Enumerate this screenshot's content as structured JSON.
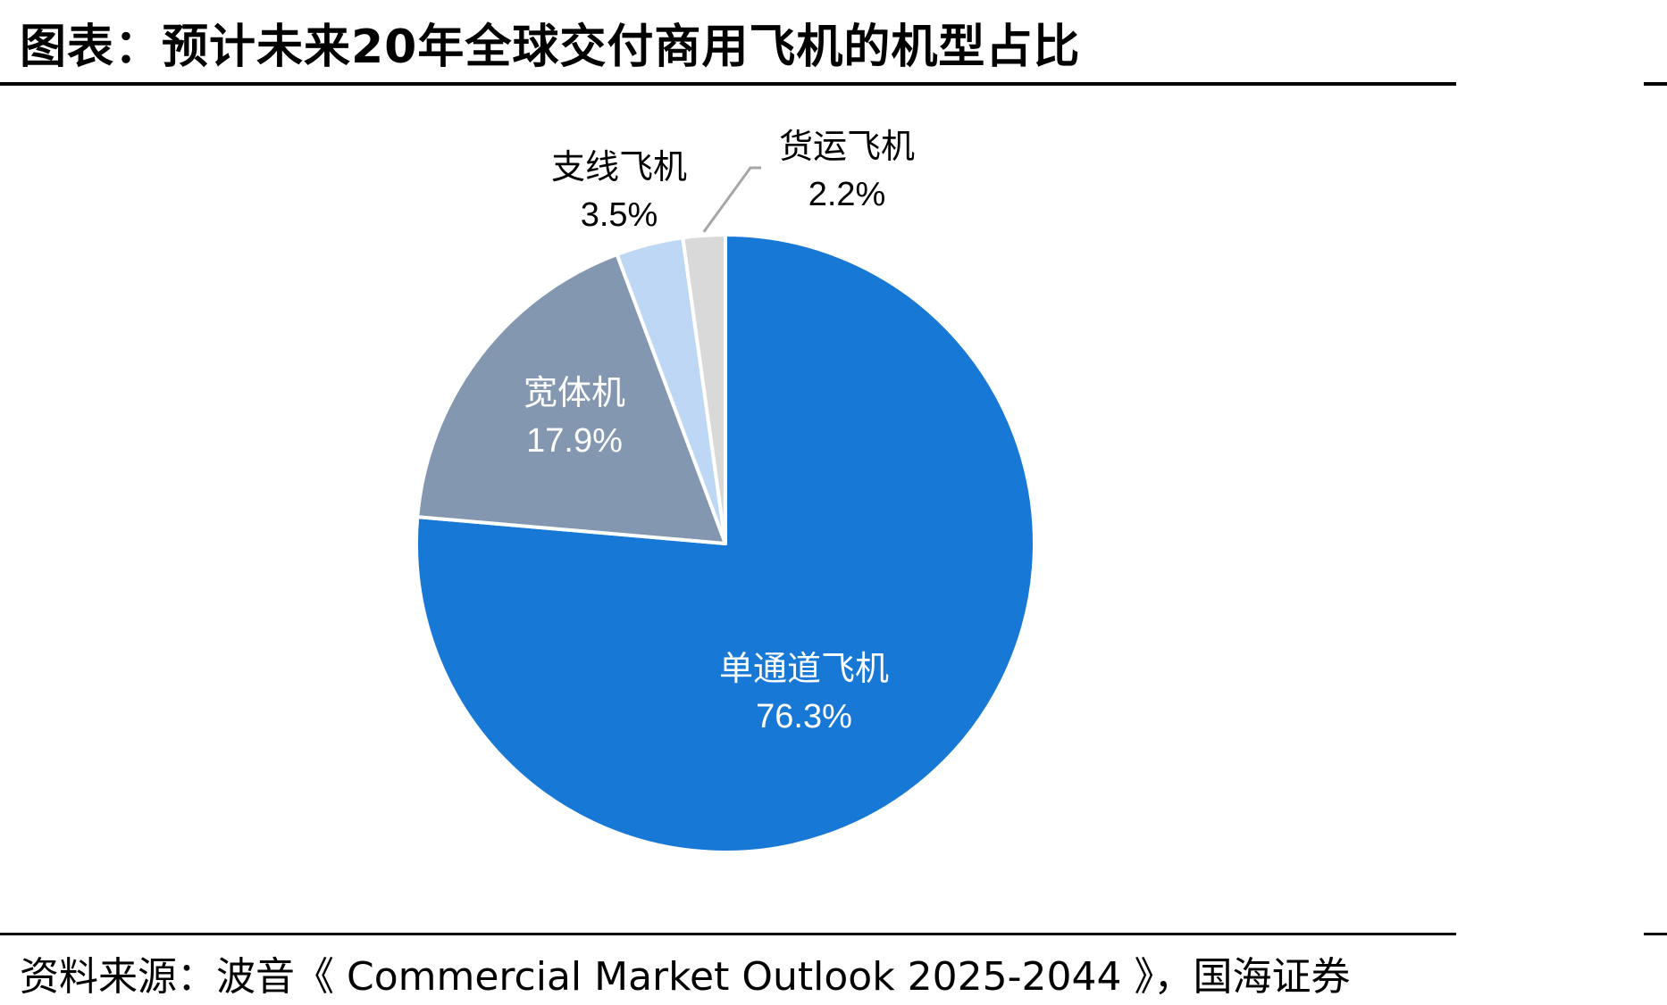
{
  "title": "图表：预计未来20年全球交付商用飞机的机型占比",
  "source": "资料来源：波音《 Commercial Market Outlook 2025-2044 》，国海证券",
  "chart_data": {
    "type": "pie",
    "title": "图表：预计未来20年全球交付商用飞机的机型占比",
    "slices": [
      {
        "name": "单通道飞机",
        "value": 76.3,
        "label": "76.3%",
        "color": "#1878D6"
      },
      {
        "name": "宽体机",
        "value": 17.9,
        "label": "17.9%",
        "color": "#8497B0"
      },
      {
        "name": "支线飞机",
        "value": 3.5,
        "label": "3.5%",
        "color": "#BDD7F5"
      },
      {
        "name": "货运飞机",
        "value": 2.2,
        "label": "2.2%",
        "color": "#D9D9D9"
      }
    ],
    "start": "12 o'clock",
    "direction": "clockwise"
  }
}
